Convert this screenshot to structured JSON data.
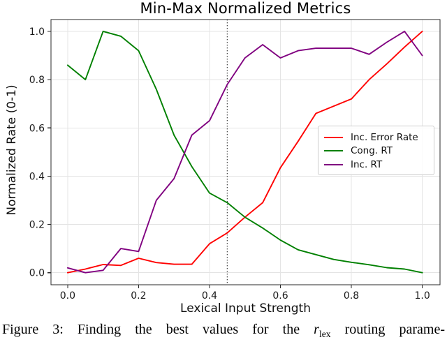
{
  "figure": {
    "caption": {
      "prefix": "Figure 3: Finding the best values for the ",
      "variable": "r",
      "subscript": "lex",
      "suffix": " routing parame-"
    }
  },
  "chart_data": {
    "type": "line",
    "title": "Min-Max Normalized Metrics",
    "xlabel": "Lexical Input Strength",
    "ylabel": "Normalized Rate (0-1)",
    "x": [
      0.0,
      0.05,
      0.1,
      0.15,
      0.2,
      0.25,
      0.3,
      0.35,
      0.4,
      0.45,
      0.5,
      0.55,
      0.6,
      0.65,
      0.7,
      0.75,
      0.8,
      0.85,
      0.9,
      0.95,
      1.0
    ],
    "series": [
      {
        "name": "Inc. Error Rate",
        "color": "#ff0000",
        "values": [
          0.0,
          0.015,
          0.034,
          0.03,
          0.06,
          0.042,
          0.035,
          0.035,
          0.12,
          0.165,
          0.23,
          0.29,
          0.435,
          0.545,
          0.66,
          0.69,
          0.72,
          0.8,
          0.865,
          0.935,
          1.0
        ]
      },
      {
        "name": "Cong. RT",
        "color": "#008000",
        "values": [
          0.86,
          0.8,
          1.0,
          0.98,
          0.92,
          0.76,
          0.57,
          0.44,
          0.33,
          0.29,
          0.23,
          0.185,
          0.135,
          0.095,
          0.075,
          0.055,
          0.043,
          0.033,
          0.021,
          0.015,
          0.0
        ]
      },
      {
        "name": "Inc. RT",
        "color": "#800080",
        "values": [
          0.02,
          0.0,
          0.01,
          0.1,
          0.088,
          0.3,
          0.39,
          0.57,
          0.63,
          0.78,
          0.89,
          0.945,
          0.89,
          0.92,
          0.93,
          0.93,
          0.93,
          0.905,
          0.955,
          1.0,
          0.9
        ]
      }
    ],
    "xticks": [
      0.0,
      0.2,
      0.4,
      0.6,
      0.8,
      1.0
    ],
    "yticks": [
      0.0,
      0.2,
      0.4,
      0.6,
      0.8,
      1.0
    ],
    "xtick_labels": [
      "0.0",
      "0.2",
      "0.4",
      "0.6",
      "0.8",
      "1.0"
    ],
    "ytick_labels": [
      "0.0",
      "0.2",
      "0.4",
      "0.6",
      "0.8",
      "1.0"
    ],
    "xlim": [
      -0.047,
      1.05
    ],
    "ylim": [
      -0.05,
      1.049
    ],
    "grid": true,
    "legend_position": "center right",
    "vline": {
      "x": 0.45,
      "style": "dotted",
      "color": "#3a3a3a"
    }
  }
}
